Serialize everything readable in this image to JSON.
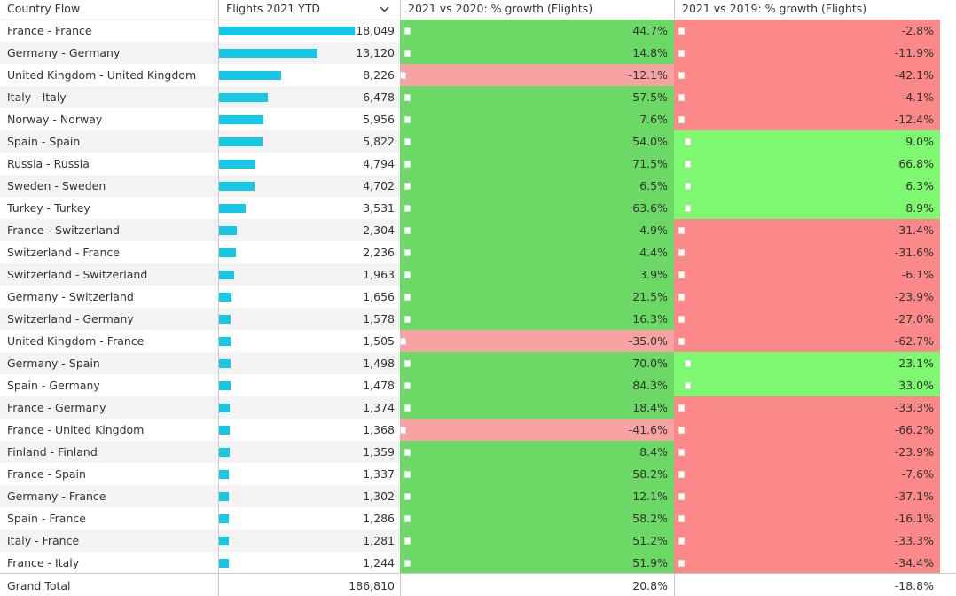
{
  "table": {
    "headers": {
      "country_flow": "Country Flow",
      "flights_ytd": "Flights 2021 YTD",
      "growth_2020": "2021 vs 2020: % growth (Flights)",
      "growth_2019": "2021 vs 2019: % growth (Flights)"
    },
    "colors": {
      "bar": "#14c8e6",
      "g20_positive": "#6cd966",
      "g20_negative": "#f7a3a3",
      "g19_positive": "#7ef871",
      "g19_negative": "#fb8989"
    },
    "rows": [
      {
        "flow": "France - France",
        "flights": "18,049",
        "flights_value": 18049,
        "g20": "44.7%",
        "g20_value": 44.7,
        "g19": "-2.8%",
        "g19_value": -2.8
      },
      {
        "flow": "Germany - Germany",
        "flights": "13,120",
        "flights_value": 13120,
        "g20": "14.8%",
        "g20_value": 14.8,
        "g19": "-11.9%",
        "g19_value": -11.9
      },
      {
        "flow": "United Kingdom - United Kingdom",
        "flights": "8,226",
        "flights_value": 8226,
        "g20": "-12.1%",
        "g20_value": -12.1,
        "g19": "-42.1%",
        "g19_value": -42.1
      },
      {
        "flow": "Italy - Italy",
        "flights": "6,478",
        "flights_value": 6478,
        "g20": "57.5%",
        "g20_value": 57.5,
        "g19": "-4.1%",
        "g19_value": -4.1
      },
      {
        "flow": "Norway - Norway",
        "flights": "5,956",
        "flights_value": 5956,
        "g20": "7.6%",
        "g20_value": 7.6,
        "g19": "-12.4%",
        "g19_value": -12.4
      },
      {
        "flow": "Spain - Spain",
        "flights": "5,822",
        "flights_value": 5822,
        "g20": "54.0%",
        "g20_value": 54.0,
        "g19": "9.0%",
        "g19_value": 9.0
      },
      {
        "flow": "Russia - Russia",
        "flights": "4,794",
        "flights_value": 4794,
        "g20": "71.5%",
        "g20_value": 71.5,
        "g19": "66.8%",
        "g19_value": 66.8
      },
      {
        "flow": "Sweden - Sweden",
        "flights": "4,702",
        "flights_value": 4702,
        "g20": "6.5%",
        "g20_value": 6.5,
        "g19": "6.3%",
        "g19_value": 6.3
      },
      {
        "flow": "Turkey - Turkey",
        "flights": "3,531",
        "flights_value": 3531,
        "g20": "63.6%",
        "g20_value": 63.6,
        "g19": "8.9%",
        "g19_value": 8.9
      },
      {
        "flow": "France - Switzerland",
        "flights": "2,304",
        "flights_value": 2304,
        "g20": "4.9%",
        "g20_value": 4.9,
        "g19": "-31.4%",
        "g19_value": -31.4
      },
      {
        "flow": "Switzerland - France",
        "flights": "2,236",
        "flights_value": 2236,
        "g20": "4.4%",
        "g20_value": 4.4,
        "g19": "-31.6%",
        "g19_value": -31.6
      },
      {
        "flow": "Switzerland - Switzerland",
        "flights": "1,963",
        "flights_value": 1963,
        "g20": "3.9%",
        "g20_value": 3.9,
        "g19": "-6.1%",
        "g19_value": -6.1
      },
      {
        "flow": "Germany - Switzerland",
        "flights": "1,656",
        "flights_value": 1656,
        "g20": "21.5%",
        "g20_value": 21.5,
        "g19": "-23.9%",
        "g19_value": -23.9
      },
      {
        "flow": "Switzerland - Germany",
        "flights": "1,578",
        "flights_value": 1578,
        "g20": "16.3%",
        "g20_value": 16.3,
        "g19": "-27.0%",
        "g19_value": -27.0
      },
      {
        "flow": "United Kingdom - France",
        "flights": "1,505",
        "flights_value": 1505,
        "g20": "-35.0%",
        "g20_value": -35.0,
        "g19": "-62.7%",
        "g19_value": -62.7
      },
      {
        "flow": "Germany - Spain",
        "flights": "1,498",
        "flights_value": 1498,
        "g20": "70.0%",
        "g20_value": 70.0,
        "g19": "23.1%",
        "g19_value": 23.1
      },
      {
        "flow": "Spain - Germany",
        "flights": "1,478",
        "flights_value": 1478,
        "g20": "84.3%",
        "g20_value": 84.3,
        "g19": "33.0%",
        "g19_value": 33.0
      },
      {
        "flow": "France - Germany",
        "flights": "1,374",
        "flights_value": 1374,
        "g20": "18.4%",
        "g20_value": 18.4,
        "g19": "-33.3%",
        "g19_value": -33.3
      },
      {
        "flow": "France - United Kingdom",
        "flights": "1,368",
        "flights_value": 1368,
        "g20": "-41.6%",
        "g20_value": -41.6,
        "g19": "-66.2%",
        "g19_value": -66.2
      },
      {
        "flow": "Finland - Finland",
        "flights": "1,359",
        "flights_value": 1359,
        "g20": "8.4%",
        "g20_value": 8.4,
        "g19": "-23.9%",
        "g19_value": -23.9
      },
      {
        "flow": "France - Spain",
        "flights": "1,337",
        "flights_value": 1337,
        "g20": "58.2%",
        "g20_value": 58.2,
        "g19": "-7.6%",
        "g19_value": -7.6
      },
      {
        "flow": "Germany - France",
        "flights": "1,302",
        "flights_value": 1302,
        "g20": "12.1%",
        "g20_value": 12.1,
        "g19": "-37.1%",
        "g19_value": -37.1
      },
      {
        "flow": "Spain - France",
        "flights": "1,286",
        "flights_value": 1286,
        "g20": "58.2%",
        "g20_value": 58.2,
        "g19": "-16.1%",
        "g19_value": -16.1
      },
      {
        "flow": "Italy - France",
        "flights": "1,281",
        "flights_value": 1281,
        "g20": "51.2%",
        "g20_value": 51.2,
        "g19": "-33.3%",
        "g19_value": -33.3
      },
      {
        "flow": "France - Italy",
        "flights": "1,244",
        "flights_value": 1244,
        "g20": "51.9%",
        "g20_value": 51.9,
        "g19": "-34.4%",
        "g19_value": -34.4
      }
    ],
    "total": {
      "label": "Grand Total",
      "flights": "186,810",
      "g20": "20.8%",
      "g19": "-18.8%"
    }
  }
}
